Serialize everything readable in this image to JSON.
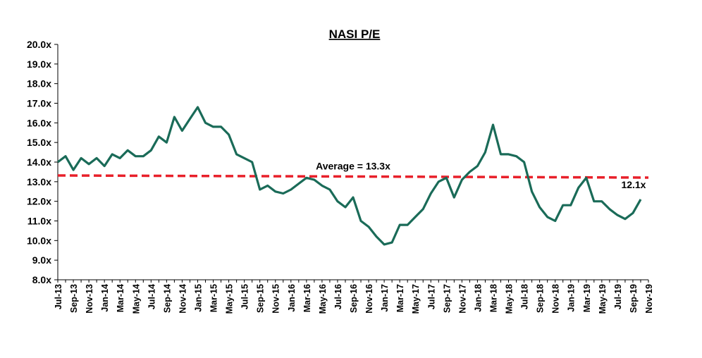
{
  "chart_data": {
    "type": "line",
    "title": "NASI P/E",
    "xlabel": "",
    "ylabel": "",
    "ylim": [
      8,
      20
    ],
    "y_ticks": [
      "8.0x",
      "9.0x",
      "10.0x",
      "11.0x",
      "12.0x",
      "13.0x",
      "14.0x",
      "15.0x",
      "16.0x",
      "17.0x",
      "18.0x",
      "19.0x",
      "20.0x"
    ],
    "x_ticks": [
      "Jul-13",
      "Sep-13",
      "Nov-13",
      "Jan-14",
      "Mar-14",
      "May-14",
      "Jul-14",
      "Sep-14",
      "Nov-14",
      "Jan-15",
      "Mar-15",
      "May-15",
      "Jul-15",
      "Sep-15",
      "Nov-15",
      "Jan-16",
      "Mar-16",
      "May-16",
      "Jul-16",
      "Sep-16",
      "Nov-16",
      "Jan-17",
      "Mar-17",
      "May-17",
      "Jul-17",
      "Sep-17",
      "Nov-17",
      "Jan-18",
      "Mar-18",
      "May-18",
      "Jul-18",
      "Sep-18",
      "Nov-18",
      "Jan-19",
      "Mar-19",
      "May-19",
      "Jul-19",
      "Sep-19",
      "Nov-19"
    ],
    "x_start": "Jul-13",
    "series": [
      {
        "color": "#1a6b58",
        "x": [
          "2013-07",
          "2013-08",
          "2013-09",
          "2013-10",
          "2013-11",
          "2013-12",
          "2014-01",
          "2014-02",
          "2014-03",
          "2014-04",
          "2014-05",
          "2014-06",
          "2014-07",
          "2014-08",
          "2014-09",
          "2014-10",
          "2014-11",
          "2014-12",
          "2015-01",
          "2015-02",
          "2015-03",
          "2015-04",
          "2015-05",
          "2015-06",
          "2015-07",
          "2015-08",
          "2015-09",
          "2015-10",
          "2015-11",
          "2015-12",
          "2016-01",
          "2016-02",
          "2016-03",
          "2016-04",
          "2016-05",
          "2016-06",
          "2016-07",
          "2016-08",
          "2016-09",
          "2016-10",
          "2016-11",
          "2016-12",
          "2017-01",
          "2017-02",
          "2017-03",
          "2017-04",
          "2017-05",
          "2017-06",
          "2017-07",
          "2017-08",
          "2017-09",
          "2017-10",
          "2017-11",
          "2017-12",
          "2018-01",
          "2018-02",
          "2018-03",
          "2018-04",
          "2018-05",
          "2018-06",
          "2018-07",
          "2018-08",
          "2018-09",
          "2018-10",
          "2018-11",
          "2018-12",
          "2019-01",
          "2019-02",
          "2019-03",
          "2019-04",
          "2019-05",
          "2019-06",
          "2019-07",
          "2019-08",
          "2019-09",
          "2019-10"
        ],
        "values": [
          14.0,
          14.3,
          13.6,
          14.2,
          13.9,
          14.2,
          13.8,
          14.4,
          14.2,
          14.6,
          14.3,
          14.3,
          14.6,
          15.3,
          15.0,
          16.3,
          15.6,
          16.2,
          16.8,
          16.0,
          15.8,
          15.8,
          15.4,
          14.4,
          14.2,
          14.0,
          12.6,
          12.8,
          12.5,
          12.4,
          12.6,
          12.9,
          13.2,
          13.1,
          12.8,
          12.6,
          12.0,
          11.7,
          12.2,
          11.0,
          10.7,
          10.2,
          9.8,
          9.9,
          10.8,
          10.8,
          11.2,
          11.6,
          12.4,
          13.0,
          13.2,
          12.2,
          13.1,
          13.5,
          13.8,
          14.5,
          15.9,
          14.4,
          14.4,
          14.3,
          14.0,
          12.5,
          11.7,
          11.2,
          11.0,
          11.8,
          11.8,
          12.7,
          13.2,
          12.0,
          12.0,
          11.6,
          11.3,
          11.1,
          11.4,
          12.1
        ]
      }
    ],
    "average": {
      "value": 13.3,
      "label": "Average = 13.3x",
      "color": "#e8202a"
    },
    "end_label": "12.1x",
    "grid": false,
    "legend": "none"
  }
}
